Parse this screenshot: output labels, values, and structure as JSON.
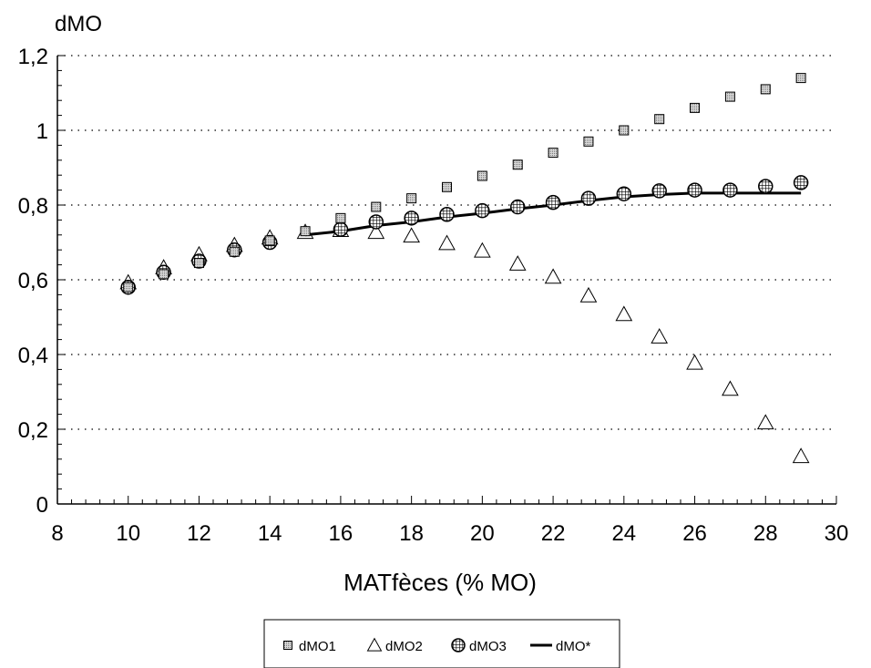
{
  "chart_data": {
    "type": "scatter",
    "title": "",
    "ylabel": "dMO",
    "xlabel": "MATfèces (% MO)",
    "xlim": [
      8,
      30
    ],
    "ylim": [
      0,
      1.2
    ],
    "x_ticks": [
      8,
      10,
      12,
      14,
      16,
      18,
      20,
      22,
      24,
      26,
      28,
      30
    ],
    "x_tick_labels": [
      "8",
      "10",
      "12",
      "14",
      "16",
      "18",
      "20",
      "22",
      "24",
      "26",
      "28",
      "30"
    ],
    "y_ticks": [
      0,
      0.2,
      0.4,
      0.6,
      0.8,
      1.0,
      1.2
    ],
    "y_tick_labels": [
      "0",
      "0,2",
      "0,4",
      "0,6",
      "0,8",
      "1",
      "1,2"
    ],
    "grid": "horizontal dotted",
    "legend_position": "bottom",
    "series": [
      {
        "name": "dMO1",
        "marker": "square",
        "x": [
          10,
          11,
          12,
          13,
          14,
          15,
          16,
          17,
          18,
          19,
          20,
          21,
          22,
          23,
          24,
          25,
          26,
          27,
          28,
          29
        ],
        "y": [
          0.58,
          0.615,
          0.645,
          0.675,
          0.705,
          0.73,
          0.765,
          0.795,
          0.818,
          0.848,
          0.878,
          0.908,
          0.94,
          0.97,
          1.0,
          1.03,
          1.06,
          1.09,
          1.11,
          1.14
        ]
      },
      {
        "name": "dMO2",
        "marker": "triangle",
        "x": [
          10,
          11,
          12,
          13,
          14,
          15,
          16,
          17,
          18,
          19,
          20,
          21,
          22,
          23,
          24,
          25,
          26,
          27,
          28,
          29
        ],
        "y": [
          0.59,
          0.63,
          0.665,
          0.69,
          0.71,
          0.725,
          0.73,
          0.725,
          0.715,
          0.695,
          0.675,
          0.64,
          0.605,
          0.555,
          0.505,
          0.445,
          0.375,
          0.305,
          0.215,
          0.125
        ]
      },
      {
        "name": "dMO3",
        "marker": "hatched-circle",
        "x": [
          10,
          11,
          12,
          13,
          14,
          16,
          17,
          18,
          19,
          20,
          21,
          22,
          23,
          24,
          25,
          26,
          27,
          28,
          29
        ],
        "y": [
          0.58,
          0.62,
          0.65,
          0.68,
          0.7,
          0.735,
          0.755,
          0.765,
          0.775,
          0.785,
          0.795,
          0.807,
          0.818,
          0.83,
          0.838,
          0.84,
          0.84,
          0.85,
          0.86
        ]
      },
      {
        "name": "dMO*",
        "marker": "line",
        "x": [
          15,
          16,
          17,
          18,
          19,
          20,
          21,
          22,
          23,
          24,
          25,
          26,
          27,
          28,
          29
        ],
        "y": [
          0.72,
          0.73,
          0.745,
          0.755,
          0.768,
          0.778,
          0.79,
          0.8,
          0.812,
          0.822,
          0.828,
          0.832,
          0.832,
          0.832,
          0.832
        ]
      }
    ],
    "legend": [
      "dMO1",
      "dMO2",
      "dMO3",
      "dMO*"
    ]
  }
}
